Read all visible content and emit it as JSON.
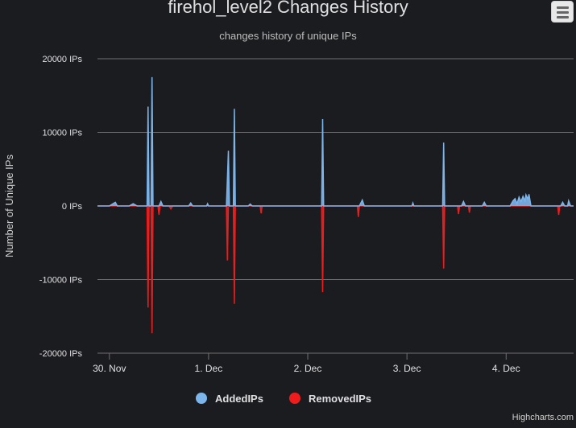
{
  "title": "firehol_level2 Changes History",
  "subtitle": "changes history of unique IPs",
  "credits": "Highcharts.com",
  "menu": {
    "icon": "menu-icon"
  },
  "colors": {
    "added": "#7cb5ec",
    "removed": "#f01c1c",
    "grid": "#707073",
    "axis_text": "#e0e0e3",
    "background": "#1b1c1f"
  },
  "chart_data": {
    "type": "area",
    "title": "firehol_level2 Changes History",
    "subtitle": "changes history of unique IPs",
    "ylabel": "Number of Unique IPs",
    "ylim": [
      -20000,
      20000
    ],
    "y_ticks": [
      20000,
      10000,
      0,
      -10000,
      -20000
    ],
    "y_tick_labels": [
      "20000 IPs",
      "10000 IPs",
      "0 IPs",
      "-10000 IPs",
      "-20000 IPs"
    ],
    "x_tick_labels": [
      "30. Nov",
      "1. Dec",
      "2. Dec",
      "3. Dec",
      "4. Dec"
    ],
    "x_tick_days": [
      0,
      1,
      2,
      3,
      4
    ],
    "xlim": [
      -0.12,
      4.68
    ],
    "grid": true,
    "legend_position": "bottom-center",
    "series": [
      {
        "name": "AddedIPs",
        "color": "#7cb5ec",
        "points": [
          [
            -0.12,
            0
          ],
          [
            0.0,
            0
          ],
          [
            0.06,
            500
          ],
          [
            0.08,
            0
          ],
          [
            0.2,
            0
          ],
          [
            0.24,
            300
          ],
          [
            0.28,
            0
          ],
          [
            0.38,
            0
          ],
          [
            0.39,
            13500
          ],
          [
            0.4,
            0
          ],
          [
            0.42,
            0
          ],
          [
            0.43,
            17500
          ],
          [
            0.44,
            0
          ],
          [
            0.5,
            0
          ],
          [
            0.52,
            600
          ],
          [
            0.54,
            0
          ],
          [
            0.8,
            0
          ],
          [
            0.82,
            400
          ],
          [
            0.84,
            0
          ],
          [
            0.98,
            0
          ],
          [
            0.99,
            300
          ],
          [
            1.0,
            0
          ],
          [
            1.18,
            0
          ],
          [
            1.2,
            7500
          ],
          [
            1.21,
            0
          ],
          [
            1.25,
            0
          ],
          [
            1.26,
            13200
          ],
          [
            1.27,
            0
          ],
          [
            1.4,
            0
          ],
          [
            1.42,
            250
          ],
          [
            1.44,
            0
          ],
          [
            2.14,
            0
          ],
          [
            2.15,
            11800
          ],
          [
            2.16,
            0
          ],
          [
            2.52,
            0
          ],
          [
            2.55,
            800
          ],
          [
            2.57,
            0
          ],
          [
            3.05,
            0
          ],
          [
            3.06,
            400
          ],
          [
            3.07,
            0
          ],
          [
            3.36,
            0
          ],
          [
            3.37,
            8600
          ],
          [
            3.38,
            0
          ],
          [
            3.55,
            0
          ],
          [
            3.57,
            600
          ],
          [
            3.59,
            0
          ],
          [
            3.76,
            0
          ],
          [
            3.78,
            500
          ],
          [
            3.8,
            0
          ],
          [
            4.04,
            0
          ],
          [
            4.07,
            700
          ],
          [
            4.09,
            1000
          ],
          [
            4.11,
            300
          ],
          [
            4.13,
            1200
          ],
          [
            4.15,
            600
          ],
          [
            4.17,
            1300
          ],
          [
            4.19,
            700
          ],
          [
            4.2,
            1500
          ],
          [
            4.22,
            900
          ],
          [
            4.23,
            1600
          ],
          [
            4.25,
            0
          ],
          [
            4.55,
            0
          ],
          [
            4.57,
            500
          ],
          [
            4.59,
            0
          ],
          [
            4.62,
            0
          ],
          [
            4.63,
            700
          ],
          [
            4.65,
            0
          ],
          [
            4.68,
            0
          ]
        ]
      },
      {
        "name": "RemovedIPs",
        "color": "#f01c1c",
        "points": [
          [
            -0.12,
            0
          ],
          [
            0.38,
            0
          ],
          [
            0.39,
            -13800
          ],
          [
            0.4,
            0
          ],
          [
            0.42,
            0
          ],
          [
            0.43,
            -17300
          ],
          [
            0.44,
            0
          ],
          [
            0.49,
            0
          ],
          [
            0.5,
            -1200
          ],
          [
            0.51,
            0
          ],
          [
            0.6,
            0
          ],
          [
            0.62,
            -400
          ],
          [
            0.64,
            0
          ],
          [
            1.18,
            0
          ],
          [
            1.19,
            -7400
          ],
          [
            1.2,
            0
          ],
          [
            1.25,
            0
          ],
          [
            1.26,
            -13300
          ],
          [
            1.27,
            0
          ],
          [
            1.52,
            0
          ],
          [
            1.53,
            -1000
          ],
          [
            1.54,
            0
          ],
          [
            2.14,
            0
          ],
          [
            2.15,
            -11700
          ],
          [
            2.16,
            0
          ],
          [
            2.5,
            0
          ],
          [
            2.51,
            -1500
          ],
          [
            2.52,
            0
          ],
          [
            3.36,
            0
          ],
          [
            3.37,
            -8500
          ],
          [
            3.38,
            0
          ],
          [
            3.51,
            0
          ],
          [
            3.52,
            -1100
          ],
          [
            3.53,
            0
          ],
          [
            3.62,
            0
          ],
          [
            3.63,
            -900
          ],
          [
            3.64,
            0
          ],
          [
            4.52,
            0
          ],
          [
            4.53,
            -1200
          ],
          [
            4.54,
            0
          ],
          [
            4.68,
            0
          ]
        ]
      }
    ]
  },
  "legend": [
    {
      "label": "AddedIPs",
      "color": "#7cb5ec"
    },
    {
      "label": "RemovedIPs",
      "color": "#f01c1c"
    }
  ]
}
